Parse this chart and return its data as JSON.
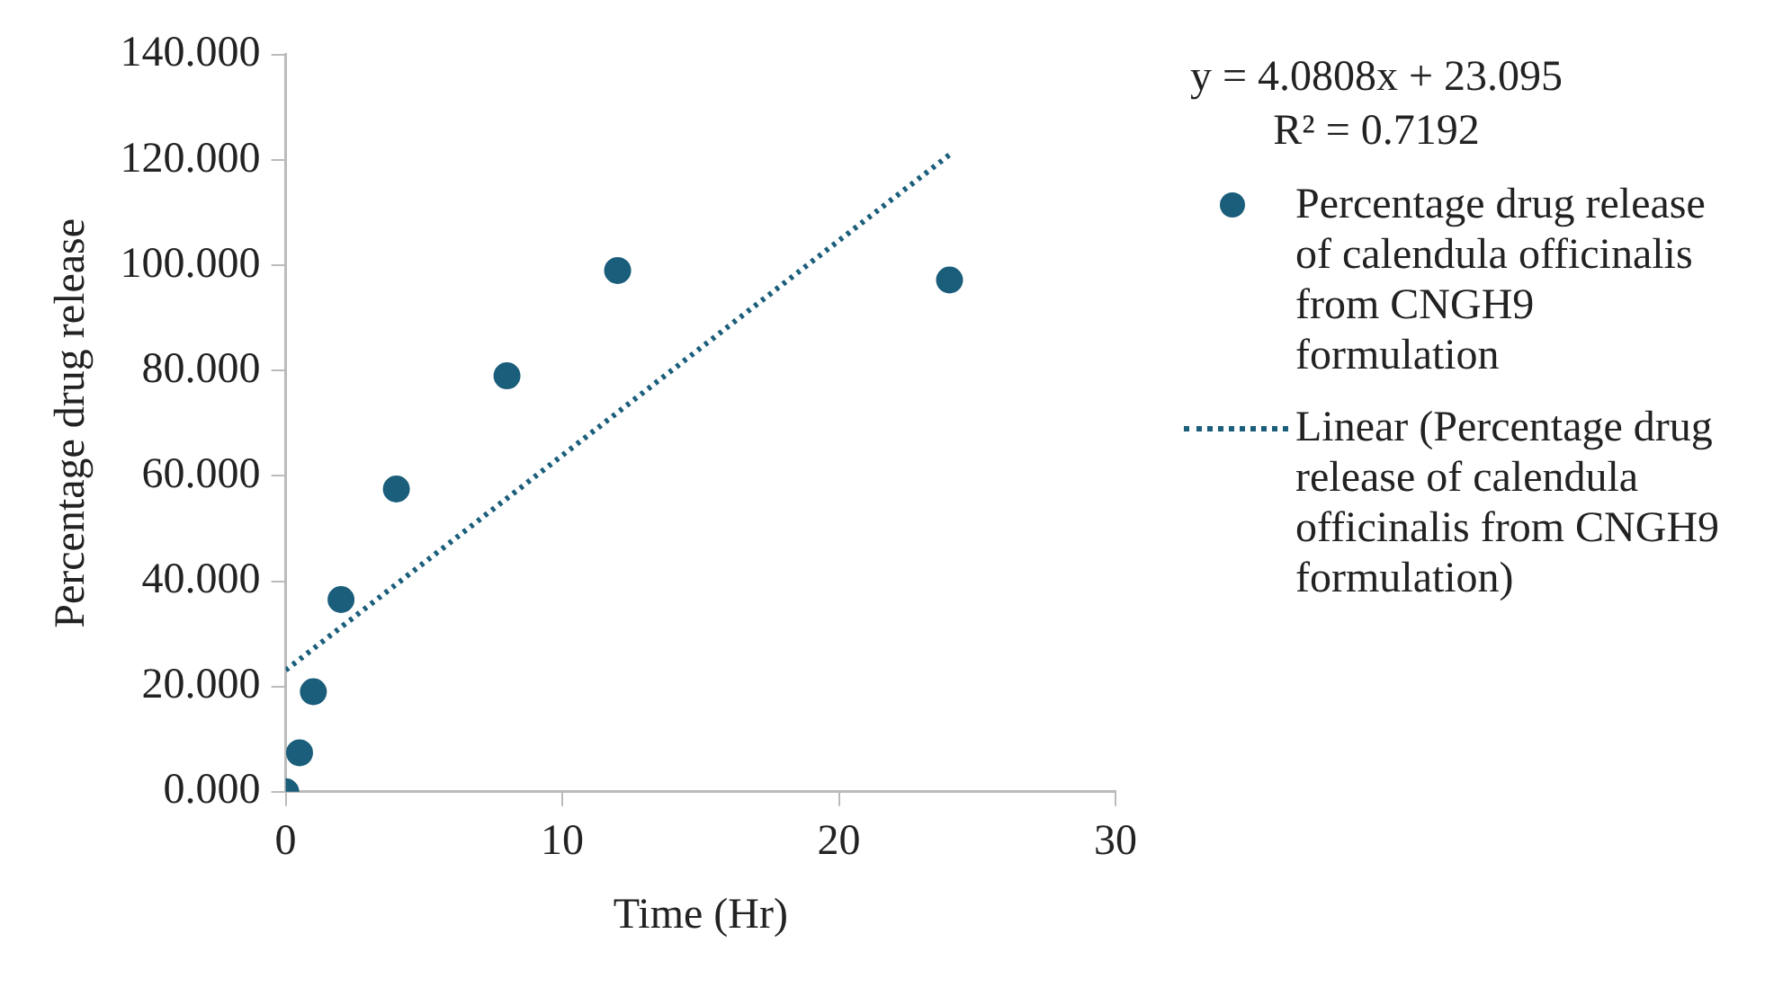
{
  "chart_data": {
    "type": "scatter",
    "xlabel": "Time (Hr)",
    "ylabel": "Percentage drug release",
    "xlim": [
      0,
      30
    ],
    "xticks": [
      0,
      10,
      20,
      30
    ],
    "ylim": [
      0,
      140
    ],
    "yticks": [
      {
        "value": 0,
        "label": "0.000"
      },
      {
        "value": 20,
        "label": "20.000"
      },
      {
        "value": 40,
        "label": "40.000"
      },
      {
        "value": 60,
        "label": "60.000"
      },
      {
        "value": 80,
        "label": "80.000"
      },
      {
        "value": 100,
        "label": "100.000"
      },
      {
        "value": 120,
        "label": "120.000"
      },
      {
        "value": 140,
        "label": "140.000"
      }
    ],
    "grid": false,
    "legend": "right",
    "marker": "circle",
    "annotations": [
      "y = 4.0808x + 23.095",
      "R² = 0.7192"
    ],
    "series": [
      {
        "name": "Percentage drug release of calendula officinalis from CNGH9 formulation",
        "color": "#1b5e7b",
        "x": [
          0,
          0.5,
          1,
          2,
          4,
          8,
          12,
          24
        ],
        "values": [
          0,
          7.4,
          19,
          36.5,
          57.5,
          79,
          99,
          97.2
        ]
      },
      {
        "type": "line",
        "line_style": "dotted",
        "marker": "none",
        "name": "Linear (Percentage drug release of calendula officinalis from  CNGH9 formulation)",
        "color": "#1b5e7b",
        "x": [
          0,
          24
        ],
        "values": [
          23.1,
          121
        ]
      }
    ]
  }
}
